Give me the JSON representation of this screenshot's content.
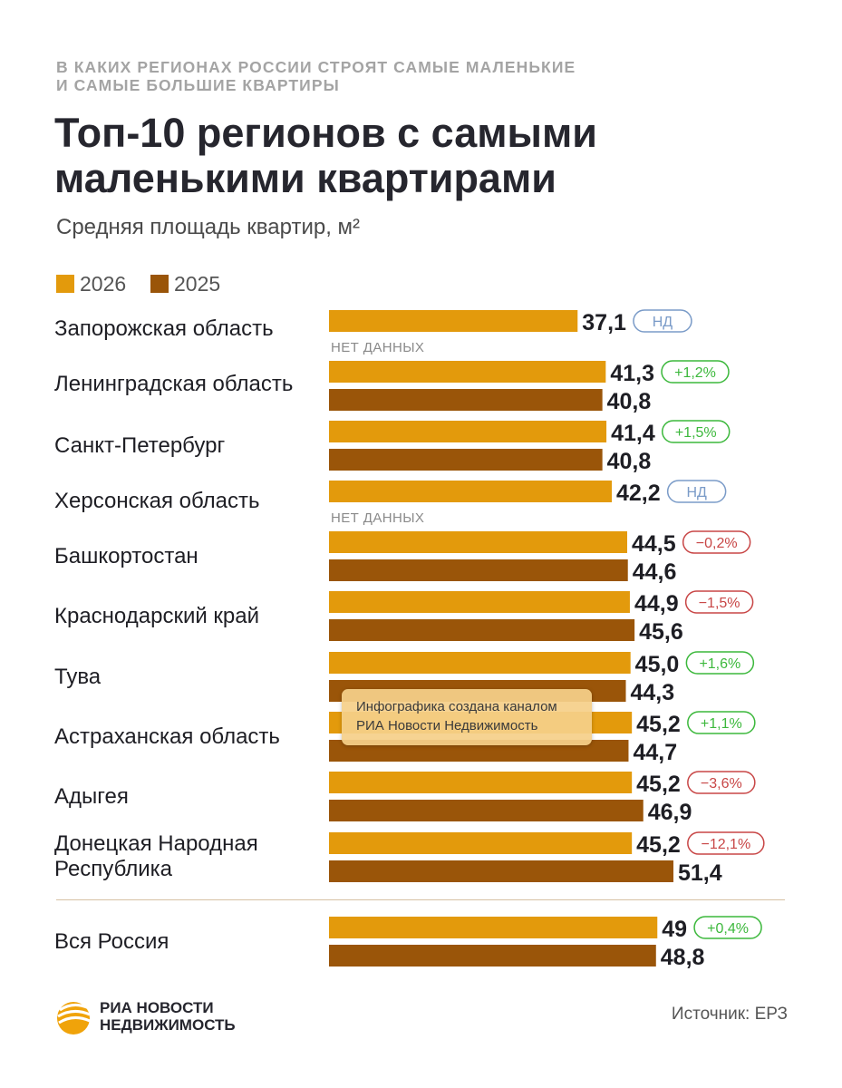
{
  "kicker": "В КАКИХ РЕГИОНАХ РОССИИ СТРОЯТ САМЫЕ МАЛЕНЬКИЕ\nИ САМЫЕ БОЛЬШИЕ КВАРТИРЫ",
  "title": "Топ-10 регионов с самыми\nмаленькими квартирами",
  "subtitle": "Средняя площадь квартир, м²",
  "legend": [
    {
      "label": "2026",
      "color": "#e39a0c"
    },
    {
      "label": "2025",
      "color": "#9a5509"
    }
  ],
  "colors": {
    "bar_2026": "#e39a0c",
    "bar_2025": "#9a5509",
    "badge_positive": "#3cb83c",
    "badge_negative": "#c84646",
    "badge_nodata": "#7a9bc8",
    "separator": "#d6c1a4"
  },
  "chart_data": {
    "type": "bar",
    "orientation": "horizontal",
    "title": "Топ-10 регионов с самыми маленькими квартирами",
    "subtitle": "Средняя площадь квартир, м²",
    "categories": [
      "Запорожская область",
      "Ленинградская область",
      "Санкт-Петербург",
      "Херсонская область",
      "Башкортостан",
      "Краснодарский край",
      "Тува",
      "Астраханская область",
      "Адыгея",
      "Донецкая Народная\nРеспублика",
      "Вся Россия"
    ],
    "series": [
      {
        "name": "2026",
        "values": [
          37.1,
          41.3,
          41.4,
          42.2,
          44.5,
          44.9,
          45.0,
          45.2,
          45.2,
          45.2,
          49
        ]
      },
      {
        "name": "2025",
        "values": [
          null,
          40.8,
          40.8,
          null,
          44.6,
          45.6,
          44.3,
          44.7,
          46.9,
          51.4,
          48.8
        ]
      }
    ],
    "value_labels_2026": [
      "37,1",
      "41,3",
      "41,4",
      "42,2",
      "44,5",
      "44,9",
      "45,0",
      "45,2",
      "45,2",
      "45,2",
      "49"
    ],
    "value_labels_2025": [
      "",
      "40,8",
      "40,8",
      "",
      "44,6",
      "45,6",
      "44,3",
      "44,7",
      "46,9",
      "51,4",
      "48,8"
    ],
    "badges": [
      {
        "text": "НД",
        "kind": "nodata"
      },
      {
        "text": "+1,2%",
        "kind": "positive"
      },
      {
        "text": "+1,5%",
        "kind": "positive"
      },
      {
        "text": "НД",
        "kind": "nodata"
      },
      {
        "text": "−0,2%",
        "kind": "negative"
      },
      {
        "text": "−1,5%",
        "kind": "negative"
      },
      {
        "text": "+1,6%",
        "kind": "positive"
      },
      {
        "text": "+1,1%",
        "kind": "positive"
      },
      {
        "text": "−3,6%",
        "kind": "negative"
      },
      {
        "text": "−12,1%",
        "kind": "negative"
      },
      {
        "text": "+0,4%",
        "kind": "positive"
      }
    ],
    "no_data_label": "НЕТ ДАННЫХ",
    "xlim": [
      0,
      51.4
    ],
    "grid": false,
    "legend_position": "top-left"
  },
  "watermark": {
    "line1": "Инфографика создана каналом",
    "line2": "РИА Новости Недвижимость"
  },
  "logo": {
    "text": "РИА НОВОСТИ\nНЕДВИЖИМОСТЬ"
  },
  "source": "Источник: ЕРЗ"
}
